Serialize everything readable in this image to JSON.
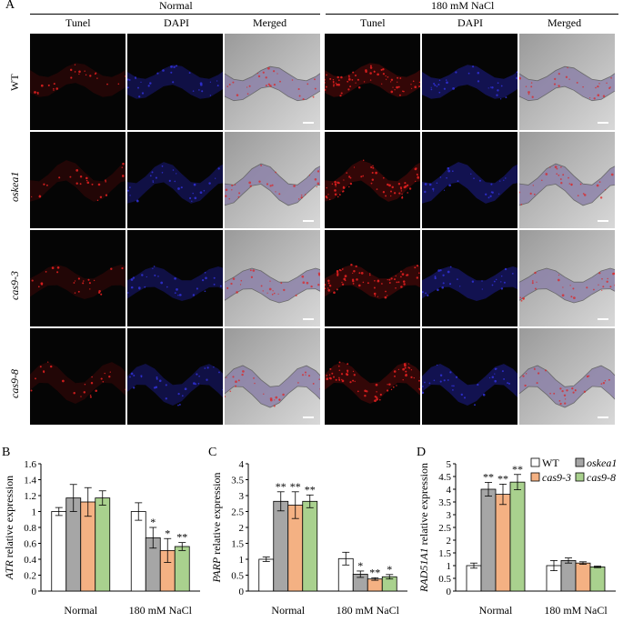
{
  "figure": {
    "panel_label_top": "A",
    "group_headers": [
      "Normal",
      "180 mM NaCl"
    ],
    "column_labels": [
      "Tunel",
      "DAPI",
      "Merged",
      "Tunel",
      "DAPI",
      "Merged"
    ],
    "row_labels": [
      "WT",
      "oskea1",
      "cas9-3",
      "cas9-8"
    ]
  },
  "colors": {
    "WT": "#ffffff",
    "oskea1": "#a6a6a6",
    "cas9_3": "#f4b183",
    "cas9_8": "#a9d18e"
  },
  "legend": {
    "entries": [
      {
        "key": "WT",
        "label": "WT",
        "color": "#ffffff",
        "italic": false
      },
      {
        "key": "oskea1",
        "label": "oskea1",
        "color": "#a6a6a6",
        "italic": true
      },
      {
        "key": "cas9_3",
        "label": "cas9-3",
        "color": "#f4b183",
        "italic": true
      },
      {
        "key": "cas9_8",
        "label": "cas9-8",
        "color": "#a9d18e",
        "italic": true
      }
    ]
  },
  "chart_data": [
    {
      "type": "bar",
      "panel": "B",
      "ylabel": "ATR relative expression",
      "ylabel_italic_part": "ATR",
      "categories": [
        "Normal",
        "180 mM NaCl"
      ],
      "ylim": [
        0,
        1.6
      ],
      "yticks": [
        "0",
        "0.2",
        "0.4",
        "0.6",
        "0.8",
        "1",
        "1.2",
        "1.4",
        "1.6"
      ],
      "series": [
        {
          "name": "WT",
          "values": [
            1.0,
            1.0
          ],
          "errors": [
            0.05,
            0.11
          ],
          "sig": [
            "",
            ""
          ]
        },
        {
          "name": "oskea1",
          "values": [
            1.17,
            0.67
          ],
          "errors": [
            0.17,
            0.13
          ],
          "sig": [
            "",
            "*"
          ]
        },
        {
          "name": "cas9-3",
          "values": [
            1.12,
            0.51
          ],
          "errors": [
            0.18,
            0.15
          ],
          "sig": [
            "",
            "*"
          ]
        },
        {
          "name": "cas9-8",
          "values": [
            1.17,
            0.56
          ],
          "errors": [
            0.09,
            0.05
          ],
          "sig": [
            "",
            "**"
          ]
        }
      ]
    },
    {
      "type": "bar",
      "panel": "C",
      "ylabel": "PARP relative expression",
      "ylabel_italic_part": "PARP",
      "categories": [
        "Normal",
        "180 mM NaCl"
      ],
      "ylim": [
        0,
        4
      ],
      "yticks": [
        "0",
        "0.5",
        "1",
        "1.5",
        "2",
        "2.5",
        "3",
        "3.5",
        "4"
      ],
      "series": [
        {
          "name": "WT",
          "values": [
            1.0,
            1.02
          ],
          "errors": [
            0.07,
            0.2
          ],
          "sig": [
            "",
            ""
          ]
        },
        {
          "name": "oskea1",
          "values": [
            2.82,
            0.53
          ],
          "errors": [
            0.3,
            0.1
          ],
          "sig": [
            "**",
            "*"
          ]
        },
        {
          "name": "cas9-3",
          "values": [
            2.7,
            0.38
          ],
          "errors": [
            0.42,
            0.04
          ],
          "sig": [
            "**",
            "**"
          ]
        },
        {
          "name": "cas9-8",
          "values": [
            2.82,
            0.45
          ],
          "errors": [
            0.2,
            0.07
          ],
          "sig": [
            "**",
            "*"
          ]
        }
      ]
    },
    {
      "type": "bar",
      "panel": "D",
      "ylabel": "RAD51A1 relative expression",
      "ylabel_italic_part": "RAD51A1",
      "categories": [
        "Normal",
        "180 mM NaCl"
      ],
      "ylim": [
        0,
        5
      ],
      "yticks": [
        "0",
        "0.5",
        "1",
        "1.5",
        "2",
        "2.5",
        "3",
        "3.5",
        "4",
        "4.5",
        "5"
      ],
      "series": [
        {
          "name": "WT",
          "values": [
            1.0,
            1.0
          ],
          "errors": [
            0.1,
            0.2
          ],
          "sig": [
            "",
            ""
          ]
        },
        {
          "name": "oskea1",
          "values": [
            4.0,
            1.2
          ],
          "errors": [
            0.27,
            0.1
          ],
          "sig": [
            "**",
            ""
          ]
        },
        {
          "name": "cas9-3",
          "values": [
            3.8,
            1.1
          ],
          "errors": [
            0.4,
            0.05
          ],
          "sig": [
            "**",
            ""
          ]
        },
        {
          "name": "cas9-8",
          "values": [
            4.28,
            0.95
          ],
          "errors": [
            0.3,
            0.03
          ],
          "sig": [
            "**",
            ""
          ]
        }
      ]
    }
  ]
}
